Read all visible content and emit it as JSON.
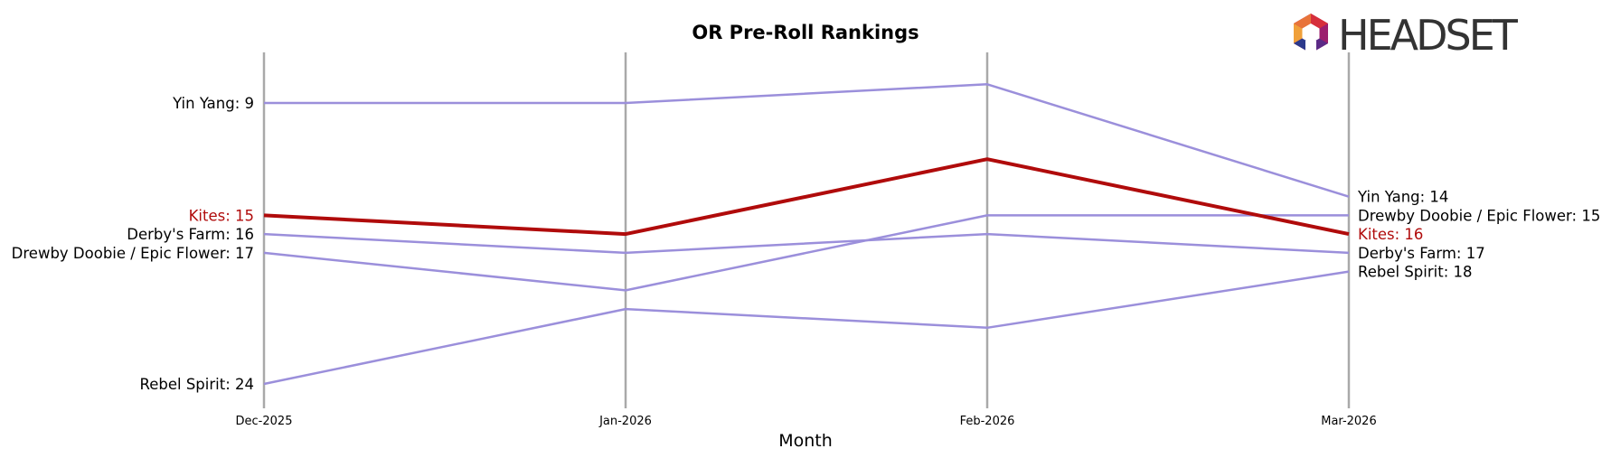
{
  "chart_data": {
    "type": "line",
    "title": "OR Pre-Roll Rankings",
    "xlabel": "Month",
    "ylabel": "",
    "categories": [
      "Dec-2025",
      "Jan-2026",
      "Feb-2026",
      "Mar-2026"
    ],
    "y_inverted": true,
    "ylim": [
      25.3,
      6.3
    ],
    "grid": false,
    "series": [
      {
        "name": "Yin Yang",
        "values": [
          9,
          9,
          8,
          14
        ],
        "color": "#9b8fdb",
        "highlight": false
      },
      {
        "name": "Kites",
        "values": [
          15,
          16,
          12,
          16
        ],
        "color": "#b00b0b",
        "highlight": true
      },
      {
        "name": "Derby's Farm",
        "values": [
          16,
          17,
          16,
          17
        ],
        "color": "#9b8fdb",
        "highlight": false
      },
      {
        "name": "Drewby Doobie / Epic Flower",
        "values": [
          17,
          19,
          15,
          15
        ],
        "color": "#9b8fdb",
        "highlight": false
      },
      {
        "name": "Rebel Spirit",
        "values": [
          24,
          20,
          21,
          18
        ],
        "color": "#9b8fdb",
        "highlight": false
      }
    ],
    "start_labels": [
      {
        "text": "Yin Yang: 9",
        "value": 9,
        "color": "#000000"
      },
      {
        "text": "Kites: 15",
        "value": 15,
        "color": "#b00b0b"
      },
      {
        "text": "Derby's Farm: 16",
        "value": 16,
        "color": "#000000"
      },
      {
        "text": "Drewby Doobie / Epic Flower: 17",
        "value": 17,
        "color": "#000000"
      },
      {
        "text": "Rebel Spirit: 24",
        "value": 24,
        "color": "#000000"
      }
    ],
    "end_labels": [
      {
        "text": "Yin Yang: 14",
        "value": 14,
        "color": "#000000"
      },
      {
        "text": "Drewby Doobie / Epic Flower: 15",
        "value": 15,
        "color": "#000000"
      },
      {
        "text": "Kites: 16",
        "value": 16,
        "color": "#b00b0b"
      },
      {
        "text": "Derby's Farm: 17",
        "value": 17,
        "color": "#000000"
      },
      {
        "text": "Rebel Spirit: 18",
        "value": 18,
        "color": "#000000"
      }
    ]
  },
  "logo": {
    "text": "HEADSET",
    "icon": "headset-logo-icon"
  }
}
